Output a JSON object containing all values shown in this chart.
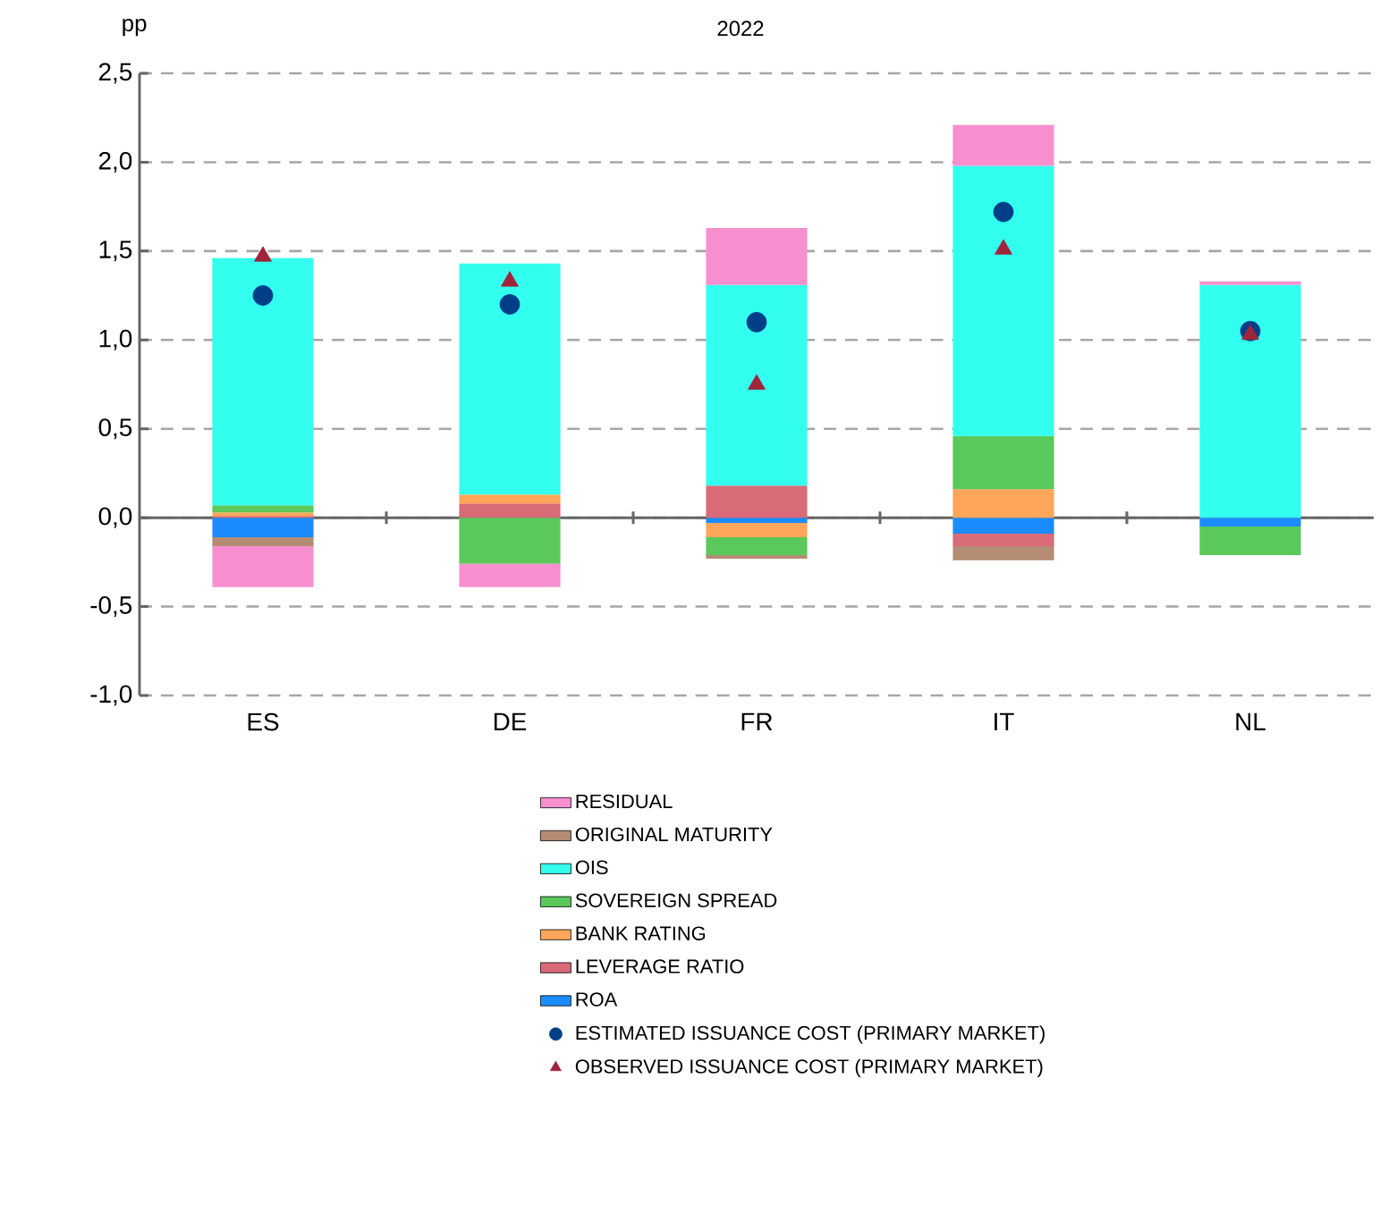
{
  "chart_data": {
    "type": "bar",
    "stacked": true,
    "title": "2022",
    "ylabel": "pp",
    "categories": [
      "ES",
      "DE",
      "FR",
      "IT",
      "NL"
    ],
    "ylim": [
      -1.0,
      2.5
    ],
    "yticks": [
      {
        "value": -1.0,
        "label": "-1,0"
      },
      {
        "value": -0.5,
        "label": "-0,5"
      },
      {
        "value": 0.0,
        "label": "0,0"
      },
      {
        "value": 0.5,
        "label": "0,5"
      },
      {
        "value": 1.0,
        "label": "1,0"
      },
      {
        "value": 1.5,
        "label": "1,5"
      },
      {
        "value": 2.0,
        "label": "2,0"
      },
      {
        "value": 2.5,
        "label": "2,5"
      }
    ],
    "grid": "y",
    "legend": "bottom",
    "series": [
      {
        "name": "ROA",
        "color": "#1a8cff",
        "values": [
          -0.11,
          null,
          -0.03,
          -0.09,
          -0.05
        ]
      },
      {
        "name": "LEVERAGE RATIO",
        "color": "#d96b78",
        "values": [
          0.01,
          0.08,
          0.18,
          -0.07,
          null
        ]
      },
      {
        "name": "BANK RATING",
        "color": "#ffa65a",
        "values": [
          0.02,
          0.05,
          -0.08,
          0.16,
          null
        ]
      },
      {
        "name": "SOVEREIGN SPREAD",
        "color": "#5bc85b",
        "values": [
          0.04,
          -0.26,
          -0.1,
          0.3,
          -0.16
        ]
      },
      {
        "name": "OIS",
        "color": "#33ffef",
        "values": [
          1.39,
          1.3,
          1.13,
          1.52,
          1.31
        ]
      },
      {
        "name": "ORIGINAL MATURITY",
        "color": "#b48c73",
        "values": [
          -0.05,
          null,
          -0.02,
          -0.08,
          null
        ]
      },
      {
        "name": "RESIDUAL",
        "color": "#f78fcf",
        "values": [
          -0.23,
          -0.13,
          0.32,
          0.23,
          0.02
        ]
      },
      {
        "name": "ESTIMATED ISSUANCE COST (PRIMARY MARKET)",
        "type": "scatter",
        "marker": "circle",
        "color": "#003f87",
        "values": [
          1.25,
          1.2,
          1.1,
          1.72,
          1.05
        ]
      },
      {
        "name": "OBSERVED ISSUANCE COST (PRIMARY MARKET)",
        "type": "scatter",
        "marker": "triangle",
        "color": "#a0243a",
        "values": [
          1.47,
          1.33,
          0.75,
          1.51,
          1.03
        ]
      }
    ]
  }
}
